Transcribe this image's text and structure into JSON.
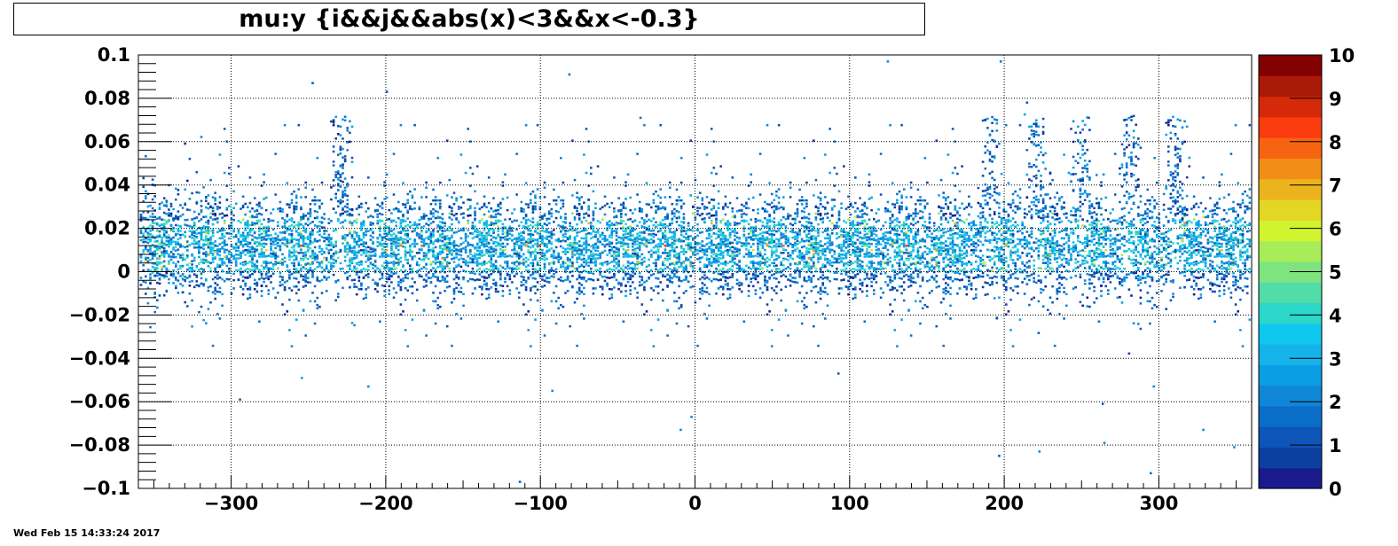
{
  "title": "mu:y {i&&j&&abs(x)<3&&x<-0.3}",
  "timestamp": "Wed Feb 15 14:33:24 2017",
  "chart_data": {
    "type": "heatmap",
    "title": "mu:y {i&&j&&abs(x)<3&&x<-0.3}",
    "xlabel": "",
    "ylabel": "",
    "xlim": [
      -360,
      360
    ],
    "ylim": [
      -0.1,
      0.1
    ],
    "x_ticks": [
      -300,
      -200,
      -100,
      0,
      100,
      200,
      300
    ],
    "x_tick_labels": [
      "−300",
      "−200",
      "−100",
      "0",
      "100",
      "200",
      "300"
    ],
    "y_ticks": [
      -0.1,
      -0.08,
      -0.06,
      -0.04,
      -0.02,
      0,
      0.02,
      0.04,
      0.06,
      0.08,
      0.1
    ],
    "y_tick_labels": [
      "−0.1",
      "−0.08",
      "−0.06",
      "−0.04",
      "−0.02",
      "0",
      "0.02",
      "0.04",
      "0.06",
      "0.08",
      "0.1"
    ],
    "grid": true,
    "colorbar": {
      "zlim": [
        0,
        10
      ],
      "ticks": [
        0,
        1,
        2,
        3,
        4,
        5,
        6,
        7,
        8,
        9,
        10
      ],
      "tick_labels": [
        "0",
        "1",
        "2",
        "3",
        "4",
        "5",
        "6",
        "7",
        "8",
        "9",
        "10"
      ],
      "colors": [
        "#1a1a8c",
        "#0b3fa0",
        "#0d55b8",
        "#0a6ec8",
        "#0f86d6",
        "#0b9ee4",
        "#14b4ea",
        "#10c8ee",
        "#2cd6c8",
        "#52dca8",
        "#7de480",
        "#a8ec58",
        "#d2f42e",
        "#e4d624",
        "#ecb41c",
        "#f28e16",
        "#f66412",
        "#fa3c0e",
        "#d42a0a",
        "#aa1a06",
        "#820000"
      ]
    },
    "band": {
      "x_range": [
        -360,
        360
      ],
      "y_center": 0.012,
      "y_core_halfwidth": 0.02,
      "y_tail": [
        -0.03,
        0.05
      ],
      "peak_count": 6,
      "spike_x": [
        -230,
        190,
        220,
        250,
        280,
        310
      ],
      "outliers": [
        {
          "x": -248,
          "y": 0.087
        },
        {
          "x": -200,
          "y": 0.083
        },
        {
          "x": -82,
          "y": 0.091
        },
        {
          "x": -36,
          "y": 0.071
        },
        {
          "x": 124,
          "y": 0.097
        },
        {
          "x": 197,
          "y": 0.097
        },
        {
          "x": 214,
          "y": 0.078
        },
        {
          "x": 254,
          "y": 0.071
        },
        {
          "x": -255,
          "y": -0.049
        },
        {
          "x": -212,
          "y": -0.053
        },
        {
          "x": -93,
          "y": -0.055
        },
        {
          "x": -295,
          "y": -0.059
        },
        {
          "x": 92,
          "y": -0.047
        },
        {
          "x": -3,
          "y": -0.067
        },
        {
          "x": -10,
          "y": -0.073
        },
        {
          "x": 296,
          "y": -0.053
        },
        {
          "x": 263,
          "y": -0.061
        },
        {
          "x": 328,
          "y": -0.073
        },
        {
          "x": 264,
          "y": -0.079
        },
        {
          "x": 222,
          "y": -0.083
        },
        {
          "x": 196,
          "y": -0.085
        },
        {
          "x": 294,
          "y": -0.093
        },
        {
          "x": -114,
          "y": -0.097
        },
        {
          "x": 348,
          "y": -0.081
        }
      ]
    }
  }
}
